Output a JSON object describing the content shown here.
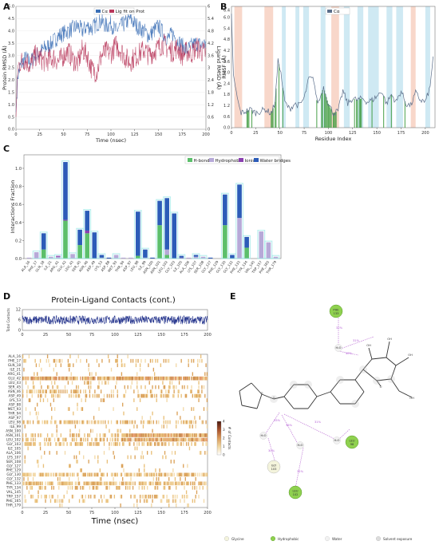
{
  "panels": {
    "a": "A",
    "b": "B",
    "c": "C",
    "d": "D",
    "e": "E"
  },
  "chart_data": [
    {
      "id": "A",
      "type": "line",
      "xlabel": "Time (nsec)",
      "ylabel": "Protein RMSD (Å)",
      "y2label": "Ligand RMSD (Å)",
      "xlim": [
        0,
        200
      ],
      "ylim": [
        0,
        5
      ],
      "y2lim": [
        0,
        6
      ],
      "xticks": [
        0,
        25,
        50,
        75,
        100,
        125,
        150,
        175,
        200
      ],
      "yticks": [
        0.0,
        0.5,
        1.0,
        1.5,
        2.0,
        2.5,
        3.0,
        3.5,
        4.0,
        4.5,
        5.0
      ],
      "y2ticks": [
        0,
        0.6,
        1.2,
        1.8,
        2.4,
        3.0,
        3.6,
        4.2,
        4.8,
        5.4,
        6.0
      ],
      "legend": "top",
      "series": [
        {
          "name": "Cα",
          "color": "#3b6fb6",
          "axis": "left",
          "x": [
            0,
            2,
            5,
            10,
            15,
            20,
            25,
            30,
            35,
            40,
            45,
            50,
            55,
            60,
            65,
            70,
            75,
            80,
            85,
            90,
            95,
            100,
            105,
            110,
            115,
            120,
            125,
            130,
            135,
            140,
            145,
            150,
            155,
            160,
            165,
            170,
            175,
            180,
            185,
            190,
            195,
            200
          ],
          "y": [
            0.7,
            2.2,
            2.6,
            2.9,
            2.7,
            3.0,
            3.1,
            3.3,
            3.4,
            3.6,
            3.8,
            3.9,
            4.0,
            4.1,
            4.2,
            4.0,
            4.2,
            4.1,
            4.3,
            4.4,
            4.2,
            4.3,
            4.0,
            4.2,
            4.3,
            4.5,
            4.3,
            4.1,
            4.0,
            3.8,
            4.0,
            4.2,
            3.9,
            3.7,
            3.9,
            3.6,
            3.4,
            3.2,
            3.4,
            3.5,
            3.4,
            3.5
          ]
        },
        {
          "name": "Lig fit on Prot",
          "color": "#b8365a",
          "axis": "right",
          "x": [
            0,
            2,
            5,
            10,
            15,
            20,
            25,
            30,
            35,
            40,
            45,
            50,
            55,
            60,
            65,
            70,
            75,
            80,
            85,
            90,
            95,
            100,
            105,
            110,
            115,
            120,
            125,
            130,
            135,
            140,
            145,
            150,
            155,
            160,
            165,
            170,
            175,
            180,
            185,
            190,
            195,
            200
          ],
          "y": [
            0.6,
            3.0,
            3.3,
            3.4,
            3.1,
            3.6,
            3.5,
            3.3,
            3.4,
            3.5,
            3.3,
            3.6,
            3.8,
            3.4,
            3.2,
            3.9,
            3.6,
            2.9,
            2.8,
            3.6,
            3.8,
            3.7,
            4.1,
            3.9,
            3.5,
            3.3,
            3.5,
            3.7,
            3.9,
            3.6,
            3.8,
            4.0,
            4.2,
            3.9,
            3.8,
            4.0,
            3.6,
            3.8,
            3.7,
            4.0,
            3.8,
            3.7
          ]
        }
      ]
    },
    {
      "id": "B",
      "type": "line",
      "xlabel": "Residue Index",
      "ylabel": "RMSF (Å)",
      "xlim": [
        0,
        210
      ],
      "ylim": [
        0,
        6.6
      ],
      "xticks": [
        0,
        25,
        50,
        75,
        100,
        125,
        150,
        175,
        200
      ],
      "yticks": [
        0.0,
        0.6,
        1.2,
        1.8,
        2.4,
        3.0,
        3.6,
        4.2,
        4.8,
        5.4,
        6.0,
        6.4
      ],
      "legend": "top",
      "bands_helix": [
        [
          3,
          11
        ],
        [
          34,
          43
        ],
        [
          103,
          111
        ],
        [
          185,
          190
        ]
      ],
      "bands_strand": [
        [
          52,
          56
        ],
        [
          66,
          70
        ],
        [
          74,
          80
        ],
        [
          92,
          97
        ],
        [
          116,
          122
        ],
        [
          130,
          136
        ],
        [
          141,
          152
        ],
        [
          160,
          166
        ],
        [
          170,
          177
        ],
        [
          200,
          205
        ]
      ],
      "contact_residues": [
        16,
        17,
        18,
        21,
        41,
        42,
        43,
        45,
        46,
        49,
        53,
        88,
        93,
        94,
        96,
        97,
        98,
        99,
        100,
        101,
        102,
        103,
        105,
        106,
        107,
        108,
        127,
        129,
        130,
        132,
        133,
        134,
        145,
        157,
        165,
        179
      ],
      "series": [
        {
          "name": "Cα",
          "color": "#5b6e8a",
          "x": [
            0,
            2,
            5,
            8,
            10,
            15,
            20,
            25,
            30,
            35,
            40,
            42,
            45,
            48,
            50,
            55,
            60,
            65,
            70,
            75,
            80,
            85,
            88,
            90,
            95,
            100,
            105,
            110,
            115,
            120,
            125,
            130,
            135,
            140,
            145,
            150,
            155,
            160,
            165,
            170,
            175,
            180,
            185,
            190,
            195,
            200,
            205,
            208
          ],
          "y": [
            6.2,
            2.9,
            1.9,
            1.1,
            0.8,
            0.9,
            1.0,
            0.8,
            0.9,
            1.0,
            0.8,
            0.9,
            1.4,
            3.6,
            3.3,
            1.4,
            1.0,
            1.3,
            1.2,
            1.6,
            2.7,
            2.6,
            1.5,
            1.4,
            2.2,
            1.3,
            0.8,
            0.9,
            2.0,
            1.3,
            1.6,
            1.5,
            1.6,
            1.4,
            1.5,
            1.7,
            2.0,
            1.3,
            1.8,
            1.4,
            2.0,
            1.3,
            1.2,
            1.9,
            1.5,
            1.4,
            2.2,
            3.9
          ]
        }
      ]
    },
    {
      "id": "C",
      "type": "bar",
      "stacked": true,
      "ylabel": "Interactions Fraction",
      "ylim": [
        0,
        1.15
      ],
      "yticks": [
        0.0,
        0.2,
        0.4,
        0.6,
        0.8,
        1.0
      ],
      "legend": "top-right",
      "categories": [
        "ALA_16",
        "PHE_17",
        "GLN_18",
        "ILE_21",
        "ARG_41",
        "GLU_42",
        "LEU_43",
        "SER_45",
        "ASN_46",
        "ASP_49",
        "LYS_53",
        "ASP_88",
        "MET_93",
        "THR_94",
        "ASP_97",
        "LEU_98",
        "ILE_99",
        "ASN_100",
        "ASN_101",
        "LEU_102",
        "GLY_103",
        "ILE_105",
        "ALA_106",
        "LYS_107",
        "SER_108",
        "GLY_127",
        "PHE_129",
        "GLY_130",
        "GLY_132",
        "PHE_133",
        "TYR_134",
        "VAL_145",
        "TRP_157",
        "PHE_165",
        "THR_179"
      ],
      "series": [
        {
          "name": "H-bonds",
          "color": "#5cbf6b",
          "values": [
            0,
            0,
            0.1,
            0,
            0,
            0.42,
            0,
            0.15,
            0.28,
            0,
            0,
            0,
            0,
            0,
            0,
            0.03,
            0,
            0,
            0.37,
            0.04,
            0,
            0,
            0,
            0,
            0,
            0,
            0,
            0.37,
            0,
            0,
            0.12,
            0,
            0,
            0,
            0
          ]
        },
        {
          "name": "Hydrophobic",
          "color": "#b7a9d8",
          "values": [
            0.01,
            0.07,
            0,
            0.02,
            0.02,
            0,
            0.05,
            0,
            0,
            0,
            0.01,
            0,
            0.04,
            0.01,
            0.01,
            0,
            0.01,
            0,
            0,
            0.06,
            0,
            0,
            0.01,
            0.02,
            0.02,
            0,
            0,
            0,
            0,
            0.45,
            0,
            0,
            0.3,
            0.18,
            0.02
          ]
        },
        {
          "name": "Ionic",
          "color": "#8a3fb0",
          "values": [
            0,
            0,
            0,
            0,
            0.01,
            0.01,
            0,
            0,
            0.03,
            0,
            0,
            0,
            0,
            0,
            0,
            0,
            0,
            0,
            0,
            0,
            0,
            0.01,
            0,
            0,
            0,
            0,
            0,
            0,
            0,
            0,
            0,
            0,
            0,
            0,
            0
          ]
        },
        {
          "name": "Water bridges",
          "color": "#2c5cb8",
          "values": [
            0,
            0,
            0.18,
            0,
            0,
            0.64,
            0,
            0.17,
            0.22,
            0.29,
            0.03,
            0.01,
            0,
            0,
            0,
            0.49,
            0.09,
            0.01,
            0.27,
            0.57,
            0.5,
            0.02,
            0,
            0.02,
            0,
            0.01,
            0,
            0.34,
            0.04,
            0.37,
            0.12,
            0,
            0,
            0,
            0
          ]
        }
      ]
    },
    {
      "id": "D",
      "type": "heatmap",
      "title": "Protein-Ligand Contacts (cont.)",
      "xlabel": "Time (nsec)",
      "ylabel": "Total Contacts",
      "colorbar_label": "# of Contacts",
      "xlim": [
        0,
        200
      ],
      "xticks": [
        0,
        25,
        50,
        75,
        100,
        125,
        150,
        175,
        200
      ],
      "top_yticks": [
        0,
        6,
        12
      ],
      "colorbar_ticks": [
        0,
        1,
        2,
        3,
        4
      ],
      "rows": [
        "ALA_16",
        "PHE_17",
        "GLN_18",
        "ILE_21",
        "ARG_41",
        "GLU_42",
        "LEU_43",
        "SER_45",
        "ASN_46",
        "ASP_49",
        "LYS_53",
        "ASP_88",
        "MET_93",
        "THR_94",
        "ASP_97",
        "LEU_98",
        "ILE_99",
        "ASN_100",
        "ASN_101",
        "LEU_102",
        "GLY_103",
        "ILE_105",
        "ALA_106",
        "LYS_107",
        "SER_108",
        "GLY_127",
        "PHE_129",
        "GLY_130",
        "GLY_132",
        "PHE_133",
        "TYR_134",
        "VAL_145",
        "TRP_157",
        "PHE_165",
        "THR_179"
      ],
      "row_density": [
        0.05,
        0.2,
        0.18,
        0.04,
        0.06,
        0.92,
        0.15,
        0.25,
        0.55,
        0.35,
        0.06,
        0.04,
        0.08,
        0.05,
        0.05,
        0.55,
        0.12,
        0.05,
        0.62,
        0.65,
        0.52,
        0.04,
        0.06,
        0.06,
        0.05,
        0.04,
        0.04,
        0.72,
        0.1,
        0.75,
        0.3,
        0.04,
        0.32,
        0.22,
        0.05
      ],
      "total_contacts_mean": 6
    },
    {
      "id": "E",
      "type": "diagram",
      "residues": [
        {
          "name": "PHE",
          "num": "133",
          "kind": "hydrophobic"
        },
        {
          "name": "GLY",
          "num": "103",
          "kind": "glycine"
        },
        {
          "name": "LEU",
          "num": "98",
          "kind": "hydrophobic"
        },
        {
          "name": "LEU",
          "num": "102",
          "kind": "hydrophobic"
        }
      ],
      "waters": [
        "H₂O",
        "H₂O",
        "H₂O",
        "H₂O"
      ],
      "atoms": [
        "OH",
        "OH",
        "OH",
        "OH",
        "O",
        "O",
        "O"
      ],
      "percents": [
        "32%",
        "31%",
        "40%",
        "33%",
        "36%",
        "31%",
        "30%",
        "32%"
      ],
      "legend": [
        "Glycine",
        "Hydrophobic",
        "Water",
        "Solvent exposure"
      ]
    }
  ]
}
